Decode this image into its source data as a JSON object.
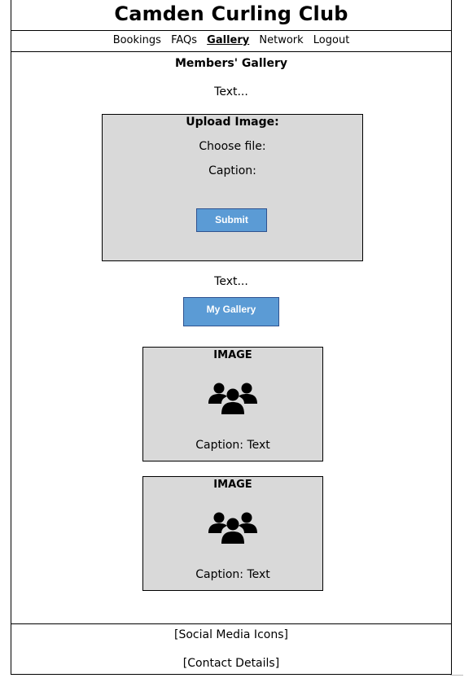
{
  "header": {
    "title": "Camden Curling Club"
  },
  "nav": {
    "items": [
      {
        "label": "Bookings",
        "active": false
      },
      {
        "label": "FAQs",
        "active": false
      },
      {
        "label": "Gallery",
        "active": true
      },
      {
        "label": "Network",
        "active": false
      },
      {
        "label": "Logout",
        "active": false
      }
    ]
  },
  "main": {
    "heading": "Members' Gallery",
    "intro_text": "Text...",
    "upload": {
      "title": "Upload Image:",
      "file_label": "Choose file:",
      "caption_label": "Caption:",
      "submit_label": "Submit"
    },
    "gallery_text": "Text...",
    "my_gallery_label": "My Gallery",
    "cards": [
      {
        "image_label": "IMAGE",
        "icon": "group-icon",
        "caption": "Caption: Text"
      },
      {
        "image_label": "IMAGE",
        "icon": "group-icon",
        "caption": "Caption: Text"
      }
    ]
  },
  "footer": {
    "social": "[Social Media Icons]",
    "contact": "[Contact Details]"
  },
  "colors": {
    "panel": "#d9d9d9",
    "button": "#5b9bd5"
  }
}
